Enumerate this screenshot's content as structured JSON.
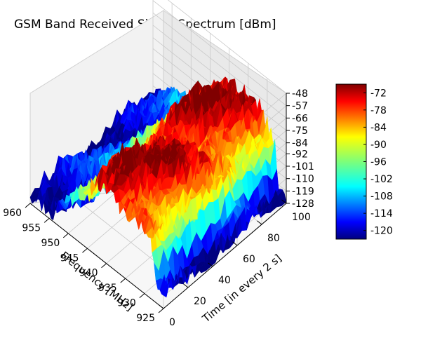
{
  "chart_data": {
    "type": "surface3d",
    "title": "GSM Band Received Signal Spectrum [dBm]",
    "xlabel": "Frequency [MHz]",
    "ylabel": "Time [in every 2 s]",
    "zlabel": "",
    "x_ticks": [
      "925",
      "930",
      "935",
      "940",
      "945",
      "950",
      "955",
      "960"
    ],
    "y_ticks": [
      "0",
      "20",
      "40",
      "60",
      "80",
      "100"
    ],
    "z_ticks": [
      "-48",
      "-57",
      "-66",
      "-75",
      "-84",
      "-92",
      "-101",
      "-110",
      "-119",
      "-128"
    ],
    "xlim": [
      925,
      960
    ],
    "ylim": [
      0,
      100
    ],
    "zlim": [
      -128,
      -48
    ],
    "colorbar": {
      "colormap": "jet",
      "range": [
        -123,
        -69
      ],
      "ticks": [
        "-72",
        "-78",
        "-84",
        "-90",
        "-96",
        "-102",
        "-108",
        "-114",
        "-120"
      ]
    },
    "spectrum_profile": {
      "frequency_mhz": [
        925,
        926,
        927,
        928,
        929,
        930,
        931,
        932,
        933,
        934,
        935,
        936,
        937,
        938,
        939,
        940,
        941,
        942,
        943,
        944,
        945,
        946,
        947,
        948,
        949,
        950,
        951,
        952,
        953,
        954,
        955,
        956,
        957,
        958,
        959,
        960
      ],
      "level_dbm": [
        -122,
        -121,
        -118,
        -95,
        -88,
        -86,
        -83,
        -80,
        -78,
        -76,
        -77,
        -75,
        -73,
        -74,
        -72,
        -71,
        -74,
        -72,
        -78,
        -84,
        -95,
        -92,
        -100,
        -98,
        -104,
        -108,
        -112,
        -110,
        -115,
        -116,
        -118,
        -119,
        -120,
        -121,
        -122,
        -123
      ]
    }
  }
}
